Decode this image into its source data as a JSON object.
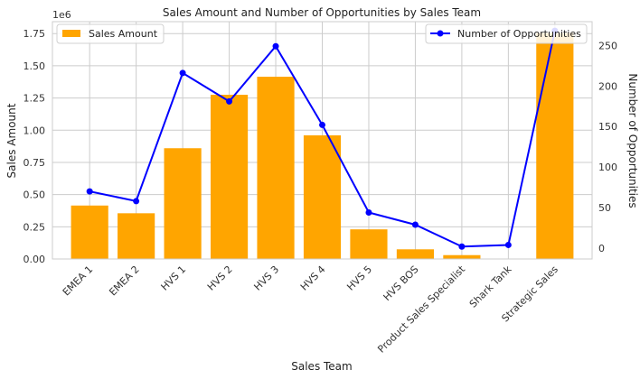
{
  "chart_data": {
    "type": "bar+line",
    "title": "Sales Amount and Number of Opportunities by Sales Team",
    "xlabel": "Sales Team",
    "ylabel_left": "Sales Amount",
    "ylabel_right": "Number of Opportunities",
    "left_offset_text": "1e6",
    "categories": [
      "EMEA 1",
      "EMEA 2",
      "HVS 1",
      "HVS 2",
      "HVS 3",
      "HVS 4",
      "HVS 5",
      "HVS BOS",
      "Product Sales Specialist",
      "Shark Tank",
      "Strategic Sales"
    ],
    "series": [
      {
        "name": "Sales Amount",
        "type": "bar",
        "axis": "left",
        "color": "#FFA500",
        "values": [
          415000,
          355000,
          860000,
          1275000,
          1415000,
          960000,
          230000,
          75000,
          30000,
          0,
          1755000
        ]
      },
      {
        "name": "Number of Opportunities",
        "type": "line",
        "axis": "right",
        "color": "#0000FF",
        "values": [
          70,
          58,
          216,
          181,
          249,
          152,
          44,
          29,
          2,
          4,
          268
        ]
      }
    ],
    "ylim_left": [
      0,
      1842750
    ],
    "ylim_right": [
      -13.3,
      279.3
    ],
    "yticks_left": [
      0,
      0.25,
      0.5,
      0.75,
      1.0,
      1.25,
      1.5,
      1.75
    ],
    "yticks_left_labels": [
      "0.00",
      "0.25",
      "0.50",
      "0.75",
      "1.00",
      "1.25",
      "1.50",
      "1.75"
    ],
    "yticks_right": [
      0,
      50,
      100,
      150,
      200,
      250
    ],
    "yticks_right_labels": [
      "0",
      "50",
      "100",
      "150",
      "200",
      "250"
    ],
    "grid": true,
    "legend_left": "top-left",
    "legend_right": "top-right"
  }
}
